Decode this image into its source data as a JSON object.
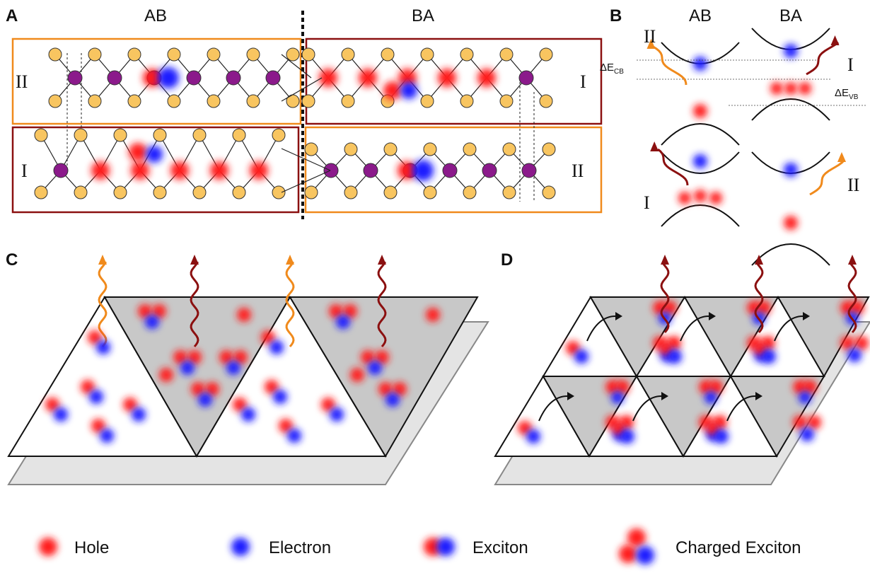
{
  "panels": {
    "a": {
      "label": "A",
      "left_title": "AB",
      "right_title": "BA",
      "top_left_region": "II",
      "top_right_region": "I",
      "bottom_left_region": "I",
      "bottom_right_region": "II"
    },
    "b": {
      "label": "B",
      "left_title": "AB",
      "right_title": "BA",
      "top_left_emission": "II",
      "top_right_emission": "I",
      "bottom_left_emission": "I",
      "bottom_right_emission": "II",
      "delta_cb": {
        "symbol": "ΔE",
        "subscript": "CB"
      },
      "delta_vb": {
        "symbol": "ΔE",
        "subscript": "VB"
      }
    },
    "c": {
      "label": "C"
    },
    "d": {
      "label": "D"
    }
  },
  "legend": [
    {
      "label": "Hole"
    },
    {
      "label": "Electron"
    },
    {
      "label": "Exciton"
    },
    {
      "label": "Charged Exciton"
    }
  ]
}
